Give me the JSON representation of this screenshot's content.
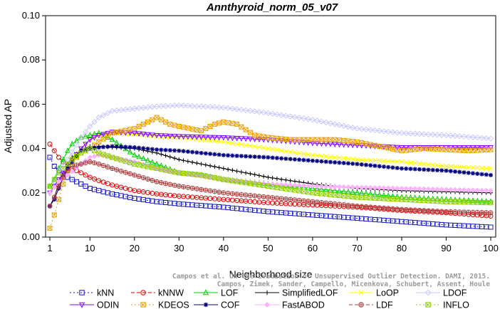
{
  "chart_data": {
    "type": "line",
    "title": "Annthyroid_norm_05_v07",
    "xlabel": "Neighborhood size",
    "ylabel": "Adjusted AP",
    "xlim": [
      0,
      100
    ],
    "ylim": [
      0,
      0.1
    ],
    "x_ticks": [
      1,
      10,
      20,
      30,
      40,
      50,
      60,
      70,
      80,
      90,
      100
    ],
    "y_ticks": [
      0.0,
      0.02,
      0.04,
      0.06,
      0.08,
      0.1
    ],
    "y_tick_labels": [
      "0.00",
      "0.02",
      "0.04",
      "0.06",
      "0.08",
      "0.10"
    ],
    "grid": false,
    "legend_position": "bottom",
    "watermark": [
      "Campos et al. On the Evaluation of Unsupervised Outlier Detection. DAMI, 2015.",
      "Campos, Zimek, Sander, Campello, Micenkova, Schubert, Assent, Houle"
    ],
    "series": [
      {
        "name": "kNN",
        "color": "#1010c8",
        "marker": "square",
        "dash": "2,3",
        "points": [
          [
            1,
            0.036
          ],
          [
            2,
            0.032
          ],
          [
            3,
            0.03
          ],
          [
            4,
            0.028
          ],
          [
            5,
            0.027
          ],
          [
            6,
            0.026
          ],
          [
            8,
            0.024
          ],
          [
            10,
            0.022
          ],
          [
            12,
            0.021
          ],
          [
            15,
            0.0195
          ],
          [
            20,
            0.0175
          ],
          [
            25,
            0.016
          ],
          [
            30,
            0.015
          ],
          [
            40,
            0.0135
          ],
          [
            50,
            0.0115
          ],
          [
            60,
            0.01
          ],
          [
            70,
            0.0085
          ],
          [
            80,
            0.007
          ],
          [
            90,
            0.0055
          ],
          [
            100,
            0.0045
          ]
        ]
      },
      {
        "name": "kNNW",
        "color": "#e00000",
        "marker": "circle",
        "dash": "5,3",
        "points": [
          [
            1,
            0.042
          ],
          [
            2,
            0.039
          ],
          [
            3,
            0.036
          ],
          [
            4,
            0.034
          ],
          [
            5,
            0.032
          ],
          [
            6,
            0.031
          ],
          [
            8,
            0.029
          ],
          [
            10,
            0.027
          ],
          [
            12,
            0.0255
          ],
          [
            15,
            0.0235
          ],
          [
            20,
            0.021
          ],
          [
            25,
            0.0195
          ],
          [
            30,
            0.0185
          ],
          [
            40,
            0.017
          ],
          [
            50,
            0.0155
          ],
          [
            60,
            0.0145
          ],
          [
            70,
            0.0135
          ],
          [
            80,
            0.012
          ],
          [
            90,
            0.011
          ],
          [
            100,
            0.0095
          ]
        ]
      },
      {
        "name": "LOF",
        "color": "#00d000",
        "marker": "triangle",
        "dash": "",
        "points": [
          [
            1,
            0.023
          ],
          [
            2,
            0.026
          ],
          [
            3,
            0.031
          ],
          [
            4,
            0.035
          ],
          [
            5,
            0.039
          ],
          [
            6,
            0.042
          ],
          [
            8,
            0.045
          ],
          [
            10,
            0.046
          ],
          [
            12,
            0.047
          ],
          [
            15,
            0.044
          ],
          [
            20,
            0.037
          ],
          [
            25,
            0.033
          ],
          [
            30,
            0.029
          ],
          [
            35,
            0.028
          ],
          [
            40,
            0.026
          ],
          [
            50,
            0.024
          ],
          [
            60,
            0.022
          ],
          [
            70,
            0.02
          ],
          [
            80,
            0.018
          ],
          [
            90,
            0.017
          ],
          [
            100,
            0.016
          ]
        ]
      },
      {
        "name": "SimplifiedLOF",
        "color": "#000000",
        "marker": "plus",
        "dash": "",
        "points": [
          [
            1,
            0.014
          ],
          [
            2,
            0.018
          ],
          [
            3,
            0.024
          ],
          [
            4,
            0.029
          ],
          [
            5,
            0.033
          ],
          [
            6,
            0.036
          ],
          [
            8,
            0.039
          ],
          [
            10,
            0.041
          ],
          [
            12,
            0.041
          ],
          [
            15,
            0.0405
          ],
          [
            20,
            0.04
          ],
          [
            25,
            0.038
          ],
          [
            30,
            0.035
          ],
          [
            35,
            0.033
          ],
          [
            40,
            0.031
          ],
          [
            50,
            0.027
          ],
          [
            60,
            0.024
          ],
          [
            70,
            0.022
          ],
          [
            80,
            0.021
          ],
          [
            90,
            0.0205
          ],
          [
            100,
            0.02
          ]
        ]
      },
      {
        "name": "LoOP",
        "color": "#ffff00",
        "marker": "x",
        "dash": "",
        "points": [
          [
            1,
            0.02
          ],
          [
            3,
            0.025
          ],
          [
            5,
            0.033
          ],
          [
            8,
            0.04
          ],
          [
            10,
            0.044
          ],
          [
            12,
            0.046
          ],
          [
            15,
            0.047
          ],
          [
            20,
            0.0465
          ],
          [
            25,
            0.0455
          ],
          [
            30,
            0.045
          ],
          [
            40,
            0.043
          ],
          [
            50,
            0.04
          ],
          [
            60,
            0.037
          ],
          [
            70,
            0.035
          ],
          [
            80,
            0.034
          ],
          [
            90,
            0.032
          ],
          [
            100,
            0.031
          ]
        ]
      },
      {
        "name": "LDOF",
        "color": "#c8c8ff",
        "marker": "diamond",
        "dash": "",
        "points": [
          [
            1,
            0.02
          ],
          [
            3,
            0.03
          ],
          [
            5,
            0.035
          ],
          [
            8,
            0.045
          ],
          [
            10,
            0.05
          ],
          [
            12,
            0.054
          ],
          [
            15,
            0.057
          ],
          [
            20,
            0.058
          ],
          [
            25,
            0.059
          ],
          [
            30,
            0.0595
          ],
          [
            35,
            0.059
          ],
          [
            40,
            0.0585
          ],
          [
            50,
            0.056
          ],
          [
            60,
            0.053
          ],
          [
            70,
            0.049
          ],
          [
            80,
            0.047
          ],
          [
            90,
            0.046
          ],
          [
            100,
            0.0445
          ]
        ]
      },
      {
        "name": "ODIN",
        "color": "#8000ff",
        "marker": "triangle-down",
        "dash": "",
        "points": [
          [
            1,
            0.02
          ],
          [
            3,
            0.026
          ],
          [
            5,
            0.032
          ],
          [
            8,
            0.04
          ],
          [
            10,
            0.044
          ],
          [
            12,
            0.046
          ],
          [
            15,
            0.0475
          ],
          [
            20,
            0.047
          ],
          [
            25,
            0.046
          ],
          [
            30,
            0.0455
          ],
          [
            40,
            0.045
          ],
          [
            50,
            0.044
          ],
          [
            60,
            0.0425
          ],
          [
            70,
            0.0415
          ],
          [
            80,
            0.0405
          ],
          [
            90,
            0.0405
          ],
          [
            100,
            0.0405
          ]
        ]
      },
      {
        "name": "KDEOS",
        "color": "#f0a000",
        "marker": "square-x",
        "dash": "2,3",
        "points": [
          [
            1,
            0.004
          ],
          [
            2,
            0.01
          ],
          [
            3,
            0.017
          ],
          [
            4,
            0.024
          ],
          [
            5,
            0.03
          ],
          [
            6,
            0.034
          ],
          [
            8,
            0.038
          ],
          [
            10,
            0.04
          ],
          [
            12,
            0.043
          ],
          [
            15,
            0.047
          ],
          [
            20,
            0.049
          ],
          [
            25,
            0.054
          ],
          [
            28,
            0.051
          ],
          [
            30,
            0.05
          ],
          [
            35,
            0.048
          ],
          [
            38,
            0.051
          ],
          [
            40,
            0.052
          ],
          [
            43,
            0.051
          ],
          [
            47,
            0.046
          ],
          [
            50,
            0.045
          ],
          [
            55,
            0.044
          ],
          [
            60,
            0.044
          ],
          [
            65,
            0.044
          ],
          [
            70,
            0.043
          ],
          [
            75,
            0.041
          ],
          [
            80,
            0.039
          ],
          [
            85,
            0.04
          ],
          [
            90,
            0.0395
          ],
          [
            95,
            0.039
          ],
          [
            100,
            0.0395
          ]
        ]
      },
      {
        "name": "COF",
        "color": "#000080",
        "marker": "star",
        "dash": "",
        "points": [
          [
            1,
            0.014
          ],
          [
            2,
            0.017
          ],
          [
            3,
            0.022
          ],
          [
            4,
            0.027
          ],
          [
            5,
            0.031
          ],
          [
            6,
            0.034
          ],
          [
            8,
            0.039
          ],
          [
            10,
            0.04
          ],
          [
            12,
            0.0405
          ],
          [
            15,
            0.041
          ],
          [
            20,
            0.0405
          ],
          [
            25,
            0.0395
          ],
          [
            30,
            0.039
          ],
          [
            35,
            0.038
          ],
          [
            40,
            0.037
          ],
          [
            45,
            0.0365
          ],
          [
            50,
            0.036
          ],
          [
            60,
            0.0345
          ],
          [
            70,
            0.033
          ],
          [
            80,
            0.031
          ],
          [
            90,
            0.03
          ],
          [
            100,
            0.028
          ]
        ]
      },
      {
        "name": "FastABOD",
        "color": "#ffb0ff",
        "marker": "diamond-filled",
        "dash": "",
        "points": [
          [
            1,
            0.02
          ],
          [
            3,
            0.025
          ],
          [
            5,
            0.028
          ],
          [
            8,
            0.033
          ],
          [
            10,
            0.036
          ],
          [
            12,
            0.037
          ],
          [
            15,
            0.036
          ],
          [
            20,
            0.034
          ],
          [
            25,
            0.031
          ],
          [
            30,
            0.029
          ],
          [
            40,
            0.026
          ],
          [
            50,
            0.024
          ],
          [
            60,
            0.023
          ],
          [
            70,
            0.0225
          ],
          [
            80,
            0.022
          ],
          [
            90,
            0.0215
          ],
          [
            100,
            0.021
          ]
        ]
      },
      {
        "name": "LDF",
        "color": "#b04040",
        "marker": "circle-plus",
        "dash": "5,3",
        "points": [
          [
            1,
            0.014
          ],
          [
            2,
            0.018
          ],
          [
            3,
            0.023
          ],
          [
            4,
            0.027
          ],
          [
            5,
            0.03
          ],
          [
            6,
            0.032
          ],
          [
            8,
            0.033
          ],
          [
            10,
            0.034
          ],
          [
            12,
            0.033
          ],
          [
            15,
            0.031
          ],
          [
            20,
            0.028
          ],
          [
            25,
            0.025
          ],
          [
            30,
            0.023
          ],
          [
            40,
            0.02
          ],
          [
            50,
            0.018
          ],
          [
            60,
            0.016
          ],
          [
            70,
            0.014
          ],
          [
            80,
            0.0125
          ],
          [
            90,
            0.0115
          ],
          [
            100,
            0.011
          ]
        ]
      },
      {
        "name": "INFLO",
        "color": "#90d000",
        "marker": "square-x",
        "dash": "2,3",
        "points": [
          [
            1,
            0.023
          ],
          [
            2,
            0.026
          ],
          [
            3,
            0.029
          ],
          [
            4,
            0.031
          ],
          [
            5,
            0.033
          ],
          [
            6,
            0.035
          ],
          [
            8,
            0.038
          ],
          [
            10,
            0.04
          ],
          [
            12,
            0.038
          ],
          [
            15,
            0.036
          ],
          [
            20,
            0.033
          ],
          [
            25,
            0.031
          ],
          [
            30,
            0.029
          ],
          [
            35,
            0.028
          ],
          [
            40,
            0.026
          ],
          [
            50,
            0.023
          ],
          [
            60,
            0.02
          ],
          [
            70,
            0.018
          ],
          [
            80,
            0.017
          ],
          [
            90,
            0.016
          ],
          [
            100,
            0.0155
          ]
        ]
      }
    ]
  }
}
